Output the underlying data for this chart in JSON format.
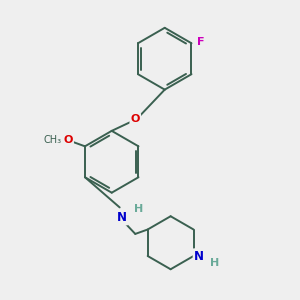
{
  "background_color": "#efefef",
  "bond_color": "#3a6050",
  "atom_colors": {
    "O": "#dd0000",
    "N": "#0000cc",
    "F": "#cc00bb",
    "H_atom": "#6aaa99",
    "C": "#3a6050"
  },
  "figsize": [
    3.0,
    3.0
  ],
  "dpi": 100,
  "xlim": [
    0,
    10
  ],
  "ylim": [
    0,
    10
  ]
}
